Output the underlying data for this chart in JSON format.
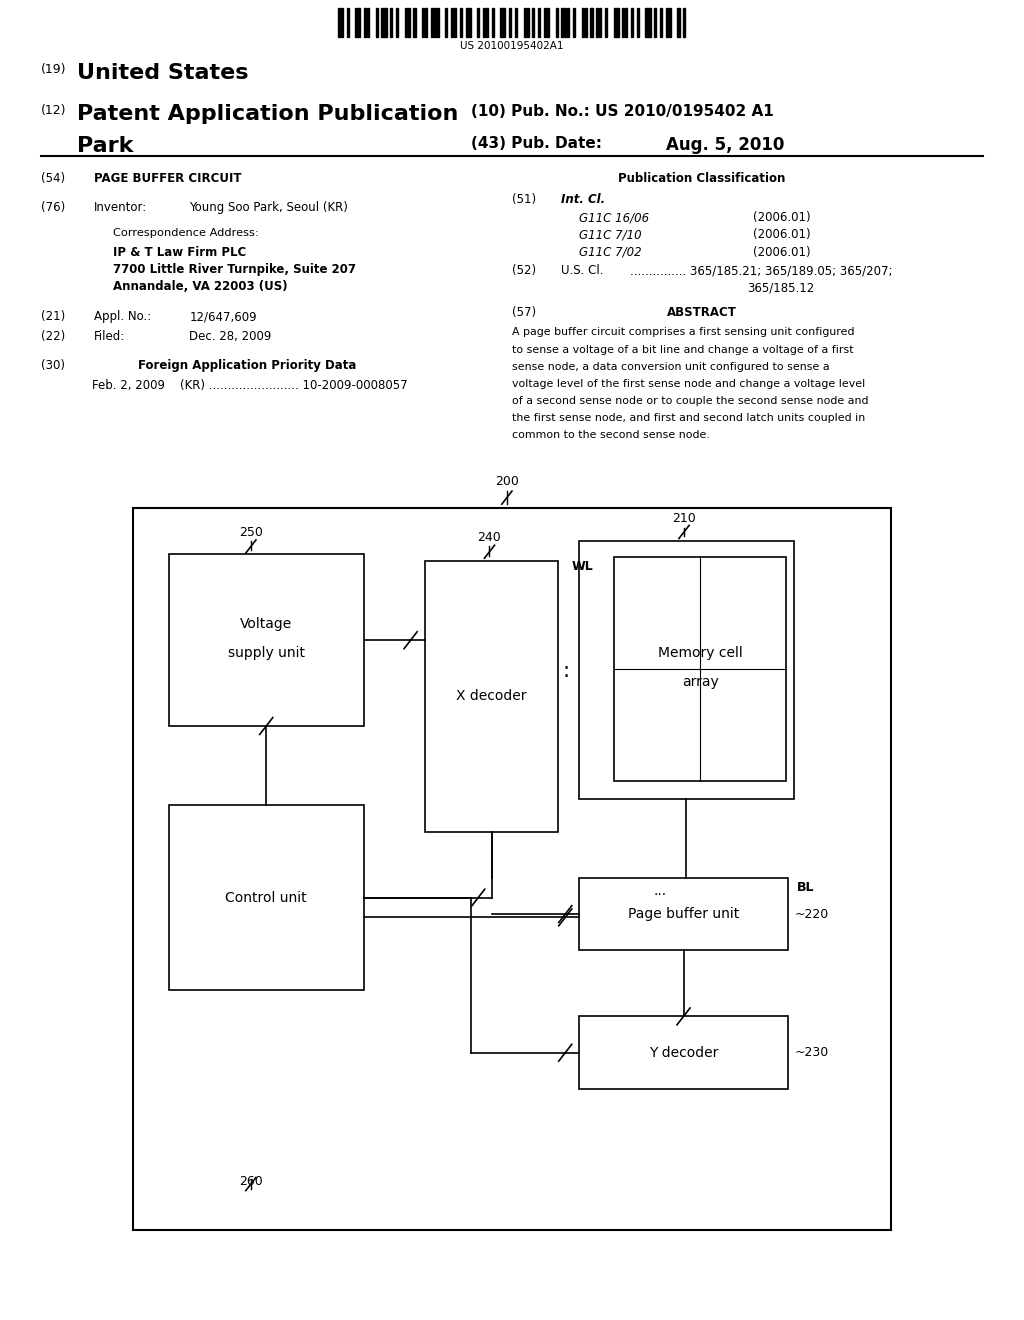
{
  "bg_color": "#ffffff",
  "barcode_text": "US 20100195402A1",
  "patent_number": "US 2010/0195402 A1",
  "pub_date": "Aug. 5, 2010",
  "title_19": "(19) United States",
  "title_12": "(12) Patent Application Publication",
  "title_10": "(10) Pub. No.: US 2010/0195402 A1",
  "title_43": "(43) Pub. Date:",
  "inventor_name": "Park",
  "section_54_text": "PAGE BUFFER CIRCUIT",
  "pub_class_title": "Publication Classification",
  "section_76_text": "Young Soo Park, Seoul (KR)",
  "corr_address_label": "Correspondence Address:",
  "corr_line1": "IP & T Law Firm PLC",
  "corr_line2": "7700 Little River Turnpike, Suite 207",
  "corr_line3": "Annandale, VA 22003 (US)",
  "section_21_text": "12/647,609",
  "section_22_text": "Dec. 28, 2009",
  "section_30_title": "Foreign Application Priority Data",
  "priority_date": "Feb. 2, 2009",
  "priority_country": "(KR)",
  "priority_dots": "........................",
  "priority_number": "10-2009-0008057",
  "int_cl_lines": [
    [
      "G11C 16/06",
      "(2006.01)"
    ],
    [
      "G11C 7/10",
      "(2006.01)"
    ],
    [
      "G11C 7/02",
      "(2006.01)"
    ]
  ],
  "us_cl_line1": "............... 365/185.21; 365/189.05; 365/207;",
  "us_cl_line2": "365/185.12",
  "section_57_title": "ABSTRACT",
  "abstract_lines": [
    "A page buffer circuit comprises a first sensing unit configured",
    "to sense a voltage of a bit line and change a voltage of a first",
    "sense node, a data conversion unit configured to sense a",
    "voltage level of the first sense node and change a voltage level",
    "of a second sense node or to couple the second sense node and",
    "the first sense node, and first and second latch units coupled in",
    "common to the second sense node."
  ],
  "barcode_pattern": [
    1,
    1,
    0,
    1,
    0,
    0,
    1,
    1,
    0,
    1,
    1,
    0,
    0,
    1,
    0,
    1,
    1,
    0,
    1,
    0,
    1,
    0,
    0,
    1,
    1,
    0,
    1,
    0,
    0,
    1,
    1,
    0,
    1,
    1,
    1,
    0,
    0,
    1,
    0,
    1,
    1,
    0,
    1,
    0,
    1,
    1,
    0,
    0,
    1,
    0,
    1,
    1,
    0,
    1,
    0,
    0,
    1,
    1,
    0,
    1,
    0,
    1,
    0,
    0,
    1,
    1,
    0,
    1,
    0,
    1,
    0,
    1,
    1,
    0,
    0,
    1,
    0,
    1,
    1,
    1,
    0,
    1,
    0,
    0,
    1,
    1,
    0,
    1,
    0,
    1,
    1,
    0,
    1,
    0,
    0,
    1,
    1,
    0,
    1,
    1,
    0,
    1,
    0,
    1,
    0,
    0,
    1,
    1,
    0,
    1,
    0,
    1,
    0,
    1,
    1,
    0,
    0,
    1,
    0,
    1
  ]
}
